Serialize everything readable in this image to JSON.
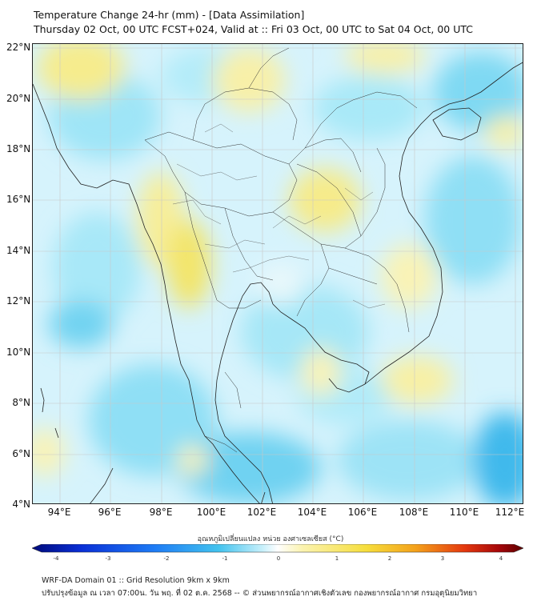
{
  "title": {
    "line1": "Temperature Change 24-hr (mm) - [Data Assimilation]",
    "line2": "Thursday 02 Oct, 00 UTC FCST+024, Valid at :: Fri 03 Oct, 00 UTC to Sat 04 Oct, 00 UTC"
  },
  "axes": {
    "lat_labels": [
      "22°N",
      "20°N",
      "18°N",
      "16°N",
      "14°N",
      "12°N",
      "10°N",
      "8°N",
      "6°N",
      "4°N"
    ],
    "lon_labels": [
      "94°E",
      "96°E",
      "98°E",
      "100°E",
      "102°E",
      "104°E",
      "106°E",
      "108°E",
      "110°E",
      "112°E"
    ]
  },
  "colorbar": {
    "title": "อุณหภูมิเปลี่ยนแปลง หน่วย องศาเซลเซียส (°C)",
    "ticks": [
      "-4",
      "-3",
      "-2",
      "-1",
      "0",
      "1",
      "2",
      "3",
      "4"
    ],
    "colors": [
      "#000a7a",
      "#0a2fd6",
      "#1e7cf5",
      "#43c3ee",
      "#c8f0fb",
      "#ffffff",
      "#fbf3b0",
      "#f6de3c",
      "#f4a21b",
      "#e4380e",
      "#a6070a",
      "#5c0000"
    ]
  },
  "footer": {
    "line1": "WRF-DA Domain 01 :: Grid Resolution 9km x 9km",
    "line2": "ปรับปรุงข้อมูล ณ เวลา 07:00น. วัน พฤ. ที่ 02 ต.ค. 2568 -- © ส่วนพยากรณ์อากาศเชิงตัวเลข กองพยากรณ์อากาศ กรมอุตุนิยมวิทยา"
  }
}
